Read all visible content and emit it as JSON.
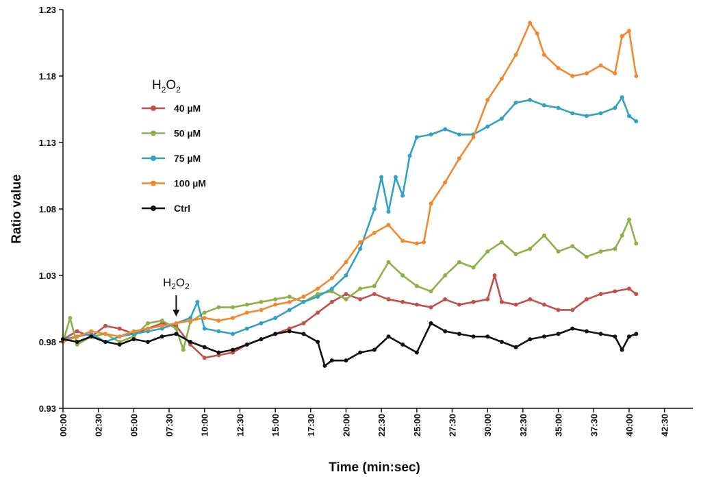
{
  "chart_data": {
    "type": "line",
    "title": "",
    "xlabel": "Time (min:sec)",
    "ylabel": "Ratio value",
    "ylim": [
      0.93,
      1.23
    ],
    "xlim": [
      0,
      44.5
    ],
    "y_ticks": [
      "0.93",
      "0.98",
      "1.03",
      "1.08",
      "1.13",
      "1.18",
      "1.23"
    ],
    "x_ticks": [
      "00:00",
      "02:30",
      "05:00",
      "07:30",
      "10:00",
      "12:30",
      "15:00",
      "17:30",
      "20:00",
      "22:30",
      "25:00",
      "27:30",
      "30:00",
      "32:30",
      "35:00",
      "37:30",
      "40:00",
      "42:30"
    ],
    "legend": {
      "title_main": "H",
      "title_sub1": "2",
      "title_mid": "O",
      "title_sub2": "2",
      "placement": "top-left"
    },
    "annotation": {
      "main": "H",
      "sub1": "2",
      "mid": "O",
      "sub2": "2",
      "at_x": 8.0,
      "at_y": 0.995
    },
    "x_units": "minutes",
    "series": [
      {
        "name": "40 µM",
        "color": "#c0504d",
        "x": [
          0,
          1,
          2,
          3,
          4,
          5,
          6,
          7,
          8,
          9,
          10,
          11,
          12,
          13,
          14,
          15,
          16,
          17,
          18,
          19,
          20,
          21,
          22,
          23,
          24,
          25,
          26,
          27,
          28,
          29,
          30,
          30.5,
          31,
          32,
          33,
          34,
          35,
          36,
          37,
          38,
          39,
          40,
          40.5
        ],
        "values": [
          0.982,
          0.988,
          0.984,
          0.992,
          0.99,
          0.986,
          0.99,
          0.994,
          0.992,
          0.978,
          0.968,
          0.97,
          0.972,
          0.978,
          0.982,
          0.986,
          0.99,
          0.994,
          1.002,
          1.01,
          1.016,
          1.012,
          1.016,
          1.012,
          1.01,
          1.008,
          1.006,
          1.012,
          1.008,
          1.01,
          1.012,
          1.03,
          1.01,
          1.008,
          1.012,
          1.008,
          1.004,
          1.004,
          1.012,
          1.016,
          1.018,
          1.02,
          1.016
        ]
      },
      {
        "name": "50 µM",
        "color": "#8db049",
        "x": [
          0,
          0.5,
          1,
          2,
          3,
          4,
          5,
          6,
          7,
          8,
          8.5,
          9,
          10,
          11,
          12,
          13,
          14,
          15,
          16,
          17,
          18,
          19,
          20,
          21,
          22,
          23,
          24,
          25,
          26,
          27,
          28,
          29,
          30,
          31,
          32,
          33,
          34,
          35,
          36,
          37,
          38,
          39,
          39.5,
          40,
          40.5
        ],
        "values": [
          0.98,
          0.998,
          0.978,
          0.984,
          0.986,
          0.98,
          0.984,
          0.994,
          0.996,
          0.99,
          0.974,
          0.995,
          1.002,
          1.006,
          1.006,
          1.008,
          1.01,
          1.012,
          1.014,
          1.01,
          1.016,
          1.018,
          1.012,
          1.02,
          1.022,
          1.04,
          1.03,
          1.022,
          1.018,
          1.03,
          1.04,
          1.036,
          1.048,
          1.055,
          1.046,
          1.05,
          1.06,
          1.048,
          1.052,
          1.044,
          1.048,
          1.05,
          1.06,
          1.072,
          1.054
        ]
      },
      {
        "name": "75 µM",
        "color": "#31a1c4",
        "x": [
          0,
          1,
          2,
          3,
          4,
          5,
          6,
          7,
          8,
          9,
          9.5,
          10,
          11,
          12,
          13,
          14,
          15,
          16,
          17,
          18,
          19,
          20,
          21,
          22,
          22.5,
          23,
          23.5,
          24,
          24.5,
          25,
          26,
          27,
          28,
          29,
          30,
          31,
          32,
          33,
          34,
          35,
          36,
          37,
          38,
          39,
          39.5,
          40,
          40.5
        ],
        "values": [
          0.982,
          0.984,
          0.986,
          0.98,
          0.984,
          0.986,
          0.988,
          0.99,
          0.994,
          0.998,
          1.01,
          0.99,
          0.988,
          0.986,
          0.99,
          0.994,
          0.998,
          1.004,
          1.01,
          1.014,
          1.02,
          1.03,
          1.05,
          1.08,
          1.104,
          1.078,
          1.104,
          1.09,
          1.12,
          1.134,
          1.136,
          1.14,
          1.136,
          1.136,
          1.142,
          1.148,
          1.16,
          1.162,
          1.158,
          1.156,
          1.152,
          1.15,
          1.152,
          1.156,
          1.164,
          1.15,
          1.146
        ]
      },
      {
        "name": "100 µM",
        "color": "#f08a32",
        "x": [
          0,
          1,
          2,
          3,
          4,
          5,
          6,
          7,
          8,
          9,
          10,
          11,
          12,
          13,
          14,
          15,
          16,
          17,
          18,
          19,
          20,
          21,
          22,
          23,
          24,
          25,
          25.5,
          26,
          27,
          28,
          29,
          30,
          31,
          32,
          33,
          33.5,
          34,
          35,
          36,
          37,
          38,
          39,
          39.5,
          40,
          40.5
        ],
        "values": [
          0.98,
          0.984,
          0.988,
          0.986,
          0.984,
          0.988,
          0.99,
          0.992,
          0.994,
          0.996,
          0.998,
          0.996,
          0.998,
          1.002,
          1.004,
          1.008,
          1.01,
          1.014,
          1.02,
          1.028,
          1.04,
          1.055,
          1.062,
          1.068,
          1.056,
          1.054,
          1.055,
          1.084,
          1.1,
          1.118,
          1.134,
          1.162,
          1.178,
          1.196,
          1.22,
          1.212,
          1.196,
          1.186,
          1.18,
          1.182,
          1.188,
          1.182,
          1.21,
          1.214,
          1.18
        ]
      },
      {
        "name": "Ctrl",
        "color": "#111111",
        "x": [
          0,
          1,
          2,
          3,
          4,
          5,
          6,
          7,
          8,
          9,
          10,
          11,
          12,
          13,
          14,
          15,
          16,
          17,
          18,
          18.5,
          19,
          20,
          21,
          22,
          23,
          24,
          25,
          26,
          27,
          28,
          29,
          30,
          31,
          32,
          33,
          34,
          35,
          36,
          37,
          38,
          39,
          39.5,
          40,
          40.5
        ],
        "values": [
          0.982,
          0.98,
          0.984,
          0.98,
          0.978,
          0.982,
          0.98,
          0.984,
          0.986,
          0.98,
          0.976,
          0.972,
          0.974,
          0.978,
          0.982,
          0.986,
          0.988,
          0.986,
          0.98,
          0.962,
          0.966,
          0.966,
          0.972,
          0.974,
          0.984,
          0.978,
          0.972,
          0.994,
          0.988,
          0.986,
          0.984,
          0.984,
          0.98,
          0.976,
          0.982,
          0.984,
          0.986,
          0.99,
          0.988,
          0.986,
          0.984,
          0.974,
          0.984,
          0.986
        ]
      }
    ]
  }
}
